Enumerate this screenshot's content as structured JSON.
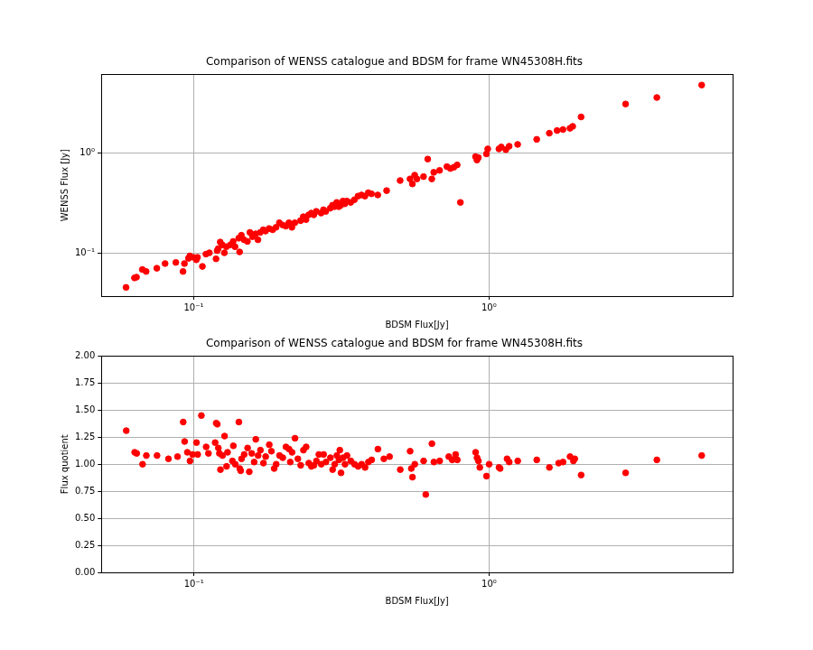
{
  "chart_data": [
    {
      "type": "scatter",
      "title": "Comparison of WENSS catalogue and BDSM for frame WN45308H.fits",
      "x_label": "BDSM Flux[Jy]",
      "y_label": "WENSS Flux [Jy]",
      "color": "#ff0000",
      "marker": "circle",
      "log": true,
      "grid": true,
      "xlim": [
        0.0486,
        6.68
      ],
      "ylim": [
        0.0368,
        6.14
      ],
      "xticks": [
        {
          "value": 0.1,
          "label": "10⁻¹"
        },
        {
          "value": 1,
          "label": "10⁰"
        }
      ],
      "yticks": [
        {
          "value": 0.1,
          "label": "10⁻¹"
        },
        {
          "value": 1,
          "label": "10⁰"
        }
      ],
      "x": [
        0.059,
        0.063,
        0.064,
        0.067,
        0.069,
        0.075,
        0.08,
        0.087,
        0.092,
        0.093,
        0.096,
        0.097,
        0.1,
        0.102,
        0.103,
        0.107,
        0.11,
        0.113,
        0.119,
        0.12,
        0.121,
        0.123,
        0.125,
        0.127,
        0.129,
        0.133,
        0.136,
        0.138,
        0.142,
        0.143,
        0.145,
        0.148,
        0.152,
        0.155,
        0.158,
        0.162,
        0.165,
        0.168,
        0.172,
        0.175,
        0.18,
        0.185,
        0.19,
        0.195,
        0.2,
        0.205,
        0.21,
        0.215,
        0.22,
        0.23,
        0.235,
        0.24,
        0.245,
        0.25,
        0.255,
        0.26,
        0.27,
        0.275,
        0.28,
        0.29,
        0.295,
        0.3,
        0.305,
        0.31,
        0.315,
        0.32,
        0.325,
        0.33,
        0.34,
        0.35,
        0.36,
        0.37,
        0.38,
        0.39,
        0.4,
        0.42,
        0.45,
        0.5,
        0.54,
        0.55,
        0.56,
        0.57,
        0.6,
        0.62,
        0.64,
        0.65,
        0.68,
        0.72,
        0.74,
        0.76,
        0.78,
        0.8,
        0.9,
        0.91,
        0.92,
        0.98,
        0.99,
        1.08,
        1.1,
        1.14,
        1.17,
        1.25,
        1.45,
        1.6,
        1.7,
        1.78,
        1.88,
        1.92,
        2.05,
        2.9,
        3.7,
        5.25
      ],
      "values": [
        0.045,
        0.056,
        0.057,
        0.068,
        0.065,
        0.07,
        0.078,
        0.08,
        0.065,
        0.078,
        0.088,
        0.093,
        0.09,
        0.085,
        0.09,
        0.073,
        0.097,
        0.1,
        0.087,
        0.105,
        0.11,
        0.128,
        0.12,
        0.1,
        0.115,
        0.12,
        0.13,
        0.115,
        0.14,
        0.102,
        0.15,
        0.135,
        0.13,
        0.16,
        0.145,
        0.155,
        0.135,
        0.16,
        0.17,
        0.165,
        0.175,
        0.17,
        0.18,
        0.2,
        0.19,
        0.185,
        0.2,
        0.18,
        0.2,
        0.21,
        0.23,
        0.215,
        0.24,
        0.25,
        0.24,
        0.26,
        0.25,
        0.27,
        0.26,
        0.28,
        0.3,
        0.29,
        0.32,
        0.29,
        0.3,
        0.33,
        0.31,
        0.33,
        0.32,
        0.34,
        0.37,
        0.38,
        0.37,
        0.4,
        0.39,
        0.38,
        0.42,
        0.53,
        0.55,
        0.49,
        0.6,
        0.55,
        0.58,
        0.87,
        0.55,
        0.64,
        0.67,
        0.73,
        0.7,
        0.72,
        0.76,
        0.32,
        0.92,
        0.85,
        0.9,
        0.98,
        1.1,
        1.1,
        1.15,
        1.08,
        1.17,
        1.22,
        1.37,
        1.58,
        1.68,
        1.72,
        1.77,
        1.85,
        2.3,
        3.1,
        3.6,
        4.8
      ]
    },
    {
      "type": "scatter",
      "title": "Comparison of WENSS catalogue and BDSM for frame WN45308H.fits",
      "x_label": "BDSM Flux[Jy]",
      "y_label": "Flux quotient",
      "color": "#ff0000",
      "marker": "circle",
      "log": "x",
      "grid": true,
      "xlim": [
        0.0486,
        6.68
      ],
      "ylim": [
        0,
        2
      ],
      "xticks": [
        {
          "value": 0.1,
          "label": "10⁻¹"
        },
        {
          "value": 1,
          "label": "10⁰"
        }
      ],
      "yticks": [
        {
          "value": 0,
          "label": "0.00"
        },
        {
          "value": 0.25,
          "label": "0.25"
        },
        {
          "value": 0.5,
          "label": "0.50"
        },
        {
          "value": 0.75,
          "label": "0.75"
        },
        {
          "value": 1,
          "label": "1.00"
        },
        {
          "value": 1.25,
          "label": "1.25"
        },
        {
          "value": 1.5,
          "label": "1.50"
        },
        {
          "value": 1.75,
          "label": "1.75"
        },
        {
          "value": 2,
          "label": "2.00"
        }
      ],
      "x": [
        0.059,
        0.063,
        0.064,
        0.067,
        0.069,
        0.075,
        0.082,
        0.088,
        0.092,
        0.093,
        0.095,
        0.097,
        0.099,
        0.102,
        0.103,
        0.106,
        0.11,
        0.112,
        0.118,
        0.119,
        0.12,
        0.121,
        0.122,
        0.123,
        0.125,
        0.127,
        0.129,
        0.13,
        0.135,
        0.136,
        0.138,
        0.142,
        0.143,
        0.144,
        0.145,
        0.148,
        0.152,
        0.154,
        0.157,
        0.16,
        0.162,
        0.165,
        0.168,
        0.172,
        0.175,
        0.18,
        0.183,
        0.187,
        0.19,
        0.195,
        0.2,
        0.205,
        0.21,
        0.212,
        0.215,
        0.22,
        0.225,
        0.23,
        0.235,
        0.24,
        0.245,
        0.25,
        0.255,
        0.26,
        0.265,
        0.27,
        0.275,
        0.28,
        0.29,
        0.295,
        0.3,
        0.305,
        0.31,
        0.312,
        0.315,
        0.32,
        0.325,
        0.33,
        0.34,
        0.35,
        0.36,
        0.37,
        0.38,
        0.39,
        0.4,
        0.42,
        0.44,
        0.46,
        0.5,
        0.54,
        0.545,
        0.55,
        0.56,
        0.6,
        0.61,
        0.64,
        0.65,
        0.68,
        0.73,
        0.75,
        0.77,
        0.78,
        0.9,
        0.91,
        0.92,
        0.93,
        0.98,
        1.0,
        1.08,
        1.09,
        1.15,
        1.17,
        1.25,
        1.45,
        1.6,
        1.72,
        1.78,
        1.88,
        1.93,
        1.95,
        2.05,
        2.9,
        3.7,
        5.25
      ],
      "values": [
        1.31,
        1.11,
        1.1,
        1.0,
        1.08,
        1.08,
        1.05,
        1.07,
        1.39,
        1.21,
        1.11,
        1.03,
        1.09,
        1.2,
        1.09,
        1.45,
        1.16,
        1.1,
        1.2,
        1.38,
        1.37,
        1.15,
        1.1,
        0.95,
        1.08,
        1.26,
        0.98,
        1.11,
        1.03,
        1.17,
        1.0,
        1.39,
        0.96,
        0.94,
        1.05,
        1.09,
        1.15,
        0.93,
        1.1,
        1.02,
        1.23,
        1.08,
        1.13,
        1.01,
        1.07,
        1.18,
        1.12,
        0.96,
        1.0,
        1.08,
        1.06,
        1.16,
        1.14,
        1.02,
        1.11,
        1.24,
        1.05,
        0.99,
        1.13,
        1.16,
        1.01,
        0.98,
        0.99,
        1.03,
        1.09,
        1.0,
        1.09,
        1.02,
        1.06,
        0.95,
        1.0,
        1.08,
        1.04,
        1.13,
        0.92,
        1.06,
        1.0,
        1.08,
        1.03,
        1.0,
        0.98,
        1.0,
        0.97,
        1.02,
        1.04,
        1.14,
        1.05,
        1.07,
        0.95,
        1.12,
        0.96,
        0.88,
        1.0,
        1.03,
        0.72,
        1.19,
        1.02,
        1.03,
        1.07,
        1.04,
        1.09,
        1.04,
        1.11,
        1.06,
        1.03,
        0.97,
        0.89,
        1.0,
        0.97,
        0.96,
        1.05,
        1.02,
        1.03,
        1.04,
        0.97,
        1.01,
        1.02,
        1.07,
        1.03,
        1.05,
        0.9,
        0.92,
        1.04,
        1.08
      ]
    }
  ]
}
